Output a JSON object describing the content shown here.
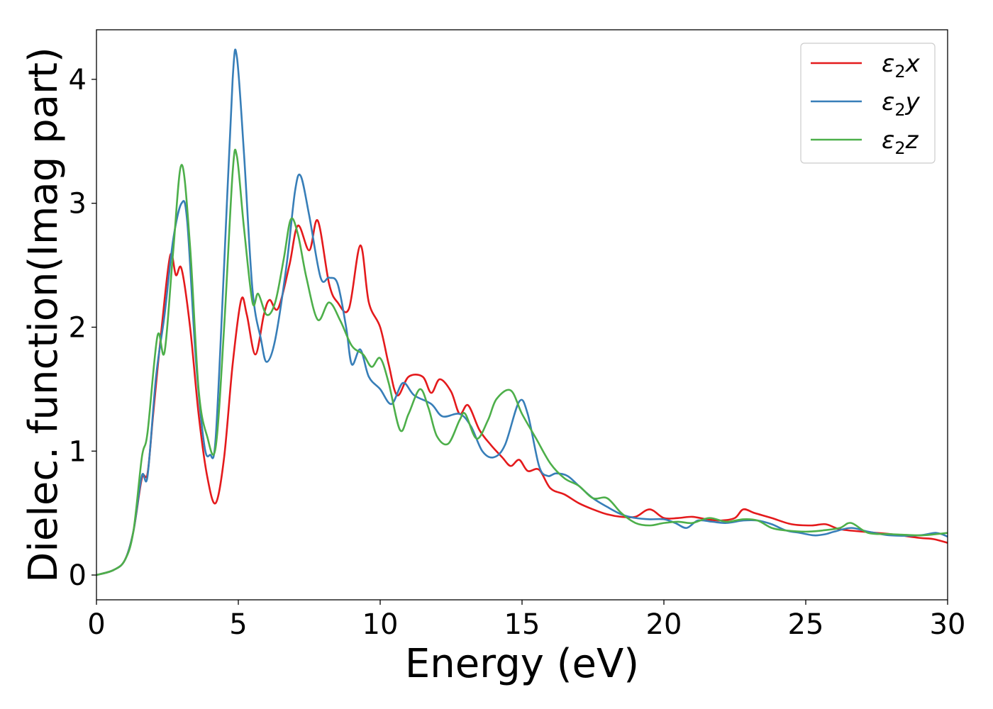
{
  "chart_data": {
    "type": "line",
    "title": "",
    "xlabel": "Energy (eV)",
    "ylabel": "Dielec. function(Imag part)",
    "xlim": [
      0,
      30
    ],
    "ylim": [
      -0.2,
      4.4
    ],
    "xticks": [
      0,
      5,
      10,
      15,
      20,
      25,
      30
    ],
    "yticks": [
      0,
      1,
      2,
      3,
      4
    ],
    "grid": false,
    "legend_position": "top-right",
    "series": [
      {
        "name": "ε₂x",
        "legend_main": "ε",
        "legend_sub": "2",
        "legend_suffix": "x",
        "color": "#e41a1c",
        "points": [
          [
            0,
            0
          ],
          [
            0.6,
            0.04
          ],
          [
            1.0,
            0.12
          ],
          [
            1.3,
            0.35
          ],
          [
            1.6,
            0.78
          ],
          [
            1.8,
            0.82
          ],
          [
            2.0,
            1.3
          ],
          [
            2.3,
            2.0
          ],
          [
            2.6,
            2.58
          ],
          [
            2.8,
            2.42
          ],
          [
            3.0,
            2.47
          ],
          [
            3.3,
            2.0
          ],
          [
            3.6,
            1.3
          ],
          [
            3.9,
            0.8
          ],
          [
            4.2,
            0.58
          ],
          [
            4.5,
            0.95
          ],
          [
            4.8,
            1.7
          ],
          [
            5.1,
            2.22
          ],
          [
            5.3,
            2.1
          ],
          [
            5.6,
            1.78
          ],
          [
            5.9,
            2.1
          ],
          [
            6.1,
            2.22
          ],
          [
            6.4,
            2.15
          ],
          [
            6.8,
            2.5
          ],
          [
            7.1,
            2.82
          ],
          [
            7.5,
            2.62
          ],
          [
            7.8,
            2.86
          ],
          [
            8.2,
            2.35
          ],
          [
            8.5,
            2.2
          ],
          [
            8.9,
            2.15
          ],
          [
            9.3,
            2.66
          ],
          [
            9.6,
            2.2
          ],
          [
            10.0,
            2.0
          ],
          [
            10.3,
            1.7
          ],
          [
            10.6,
            1.45
          ],
          [
            11.0,
            1.6
          ],
          [
            11.5,
            1.6
          ],
          [
            11.8,
            1.47
          ],
          [
            12.1,
            1.58
          ],
          [
            12.5,
            1.48
          ],
          [
            12.8,
            1.3
          ],
          [
            13.1,
            1.37
          ],
          [
            13.5,
            1.17
          ],
          [
            13.9,
            1.05
          ],
          [
            14.3,
            0.95
          ],
          [
            14.6,
            0.88
          ],
          [
            14.9,
            0.93
          ],
          [
            15.2,
            0.84
          ],
          [
            15.6,
            0.85
          ],
          [
            16.0,
            0.7
          ],
          [
            16.5,
            0.65
          ],
          [
            17.0,
            0.58
          ],
          [
            17.5,
            0.53
          ],
          [
            18.0,
            0.49
          ],
          [
            18.5,
            0.47
          ],
          [
            19.0,
            0.47
          ],
          [
            19.5,
            0.53
          ],
          [
            20.0,
            0.46
          ],
          [
            20.5,
            0.46
          ],
          [
            21.0,
            0.47
          ],
          [
            21.5,
            0.45
          ],
          [
            22.0,
            0.44
          ],
          [
            22.5,
            0.46
          ],
          [
            22.8,
            0.53
          ],
          [
            23.2,
            0.5
          ],
          [
            23.8,
            0.46
          ],
          [
            24.5,
            0.41
          ],
          [
            25.2,
            0.4
          ],
          [
            25.7,
            0.41
          ],
          [
            26.2,
            0.37
          ],
          [
            27.0,
            0.35
          ],
          [
            28.0,
            0.33
          ],
          [
            29.0,
            0.3
          ],
          [
            29.5,
            0.29
          ],
          [
            30.0,
            0.26
          ]
        ]
      },
      {
        "name": "ε₂y",
        "legend_main": "ε",
        "legend_sub": "2",
        "legend_suffix": "y",
        "color": "#377eb8",
        "points": [
          [
            0,
            0
          ],
          [
            0.6,
            0.04
          ],
          [
            1.0,
            0.12
          ],
          [
            1.3,
            0.35
          ],
          [
            1.6,
            0.8
          ],
          [
            1.8,
            0.8
          ],
          [
            2.1,
            1.6
          ],
          [
            2.4,
            2.1
          ],
          [
            2.7,
            2.7
          ],
          [
            3.0,
            3.0
          ],
          [
            3.2,
            2.85
          ],
          [
            3.5,
            1.75
          ],
          [
            3.8,
            1.05
          ],
          [
            4.0,
            0.97
          ],
          [
            4.2,
            1.1
          ],
          [
            4.5,
            2.5
          ],
          [
            4.8,
            4.0
          ],
          [
            4.95,
            4.18
          ],
          [
            5.2,
            3.4
          ],
          [
            5.5,
            2.3
          ],
          [
            5.8,
            1.9
          ],
          [
            6.0,
            1.72
          ],
          [
            6.3,
            1.9
          ],
          [
            6.7,
            2.5
          ],
          [
            7.0,
            3.1
          ],
          [
            7.2,
            3.22
          ],
          [
            7.5,
            2.9
          ],
          [
            7.9,
            2.4
          ],
          [
            8.2,
            2.4
          ],
          [
            8.5,
            2.35
          ],
          [
            8.8,
            2.0
          ],
          [
            9.0,
            1.7
          ],
          [
            9.3,
            1.82
          ],
          [
            9.6,
            1.6
          ],
          [
            10.0,
            1.5
          ],
          [
            10.4,
            1.38
          ],
          [
            10.8,
            1.55
          ],
          [
            11.2,
            1.45
          ],
          [
            11.8,
            1.38
          ],
          [
            12.2,
            1.28
          ],
          [
            12.8,
            1.3
          ],
          [
            13.2,
            1.2
          ],
          [
            13.6,
            1.0
          ],
          [
            14.0,
            0.95
          ],
          [
            14.4,
            1.05
          ],
          [
            14.9,
            1.4
          ],
          [
            15.2,
            1.3
          ],
          [
            15.6,
            0.88
          ],
          [
            15.9,
            0.8
          ],
          [
            16.2,
            0.82
          ],
          [
            16.6,
            0.8
          ],
          [
            17.0,
            0.72
          ],
          [
            17.5,
            0.62
          ],
          [
            18.0,
            0.55
          ],
          [
            18.5,
            0.49
          ],
          [
            19.0,
            0.46
          ],
          [
            19.5,
            0.45
          ],
          [
            20.0,
            0.45
          ],
          [
            20.4,
            0.42
          ],
          [
            20.8,
            0.38
          ],
          [
            21.2,
            0.44
          ],
          [
            21.7,
            0.43
          ],
          [
            22.2,
            0.42
          ],
          [
            22.8,
            0.44
          ],
          [
            23.3,
            0.44
          ],
          [
            23.8,
            0.41
          ],
          [
            24.3,
            0.36
          ],
          [
            24.8,
            0.34
          ],
          [
            25.3,
            0.32
          ],
          [
            25.7,
            0.33
          ],
          [
            26.0,
            0.35
          ],
          [
            26.6,
            0.38
          ],
          [
            27.2,
            0.35
          ],
          [
            28.0,
            0.32
          ],
          [
            29.0,
            0.32
          ],
          [
            29.6,
            0.34
          ],
          [
            30.0,
            0.31
          ]
        ]
      },
      {
        "name": "ε₂z",
        "legend_main": "ε",
        "legend_sub": "2",
        "legend_suffix": "z",
        "color": "#4daf4a",
        "points": [
          [
            0,
            0
          ],
          [
            0.6,
            0.04
          ],
          [
            1.0,
            0.12
          ],
          [
            1.3,
            0.35
          ],
          [
            1.6,
            0.95
          ],
          [
            1.8,
            1.15
          ],
          [
            2.15,
            1.93
          ],
          [
            2.4,
            1.8
          ],
          [
            2.7,
            2.6
          ],
          [
            3.0,
            3.31
          ],
          [
            3.3,
            2.65
          ],
          [
            3.6,
            1.5
          ],
          [
            3.9,
            1.12
          ],
          [
            4.2,
            1.03
          ],
          [
            4.5,
            2.0
          ],
          [
            4.8,
            3.25
          ],
          [
            4.95,
            3.38
          ],
          [
            5.2,
            2.8
          ],
          [
            5.5,
            2.2
          ],
          [
            5.7,
            2.27
          ],
          [
            6.0,
            2.1
          ],
          [
            6.3,
            2.2
          ],
          [
            6.6,
            2.55
          ],
          [
            6.85,
            2.87
          ],
          [
            7.1,
            2.75
          ],
          [
            7.4,
            2.4
          ],
          [
            7.8,
            2.06
          ],
          [
            8.2,
            2.2
          ],
          [
            8.6,
            2.05
          ],
          [
            9.0,
            1.85
          ],
          [
            9.4,
            1.78
          ],
          [
            9.7,
            1.68
          ],
          [
            10.0,
            1.75
          ],
          [
            10.3,
            1.55
          ],
          [
            10.7,
            1.17
          ],
          [
            11.0,
            1.3
          ],
          [
            11.4,
            1.5
          ],
          [
            11.7,
            1.35
          ],
          [
            12.0,
            1.12
          ],
          [
            12.4,
            1.06
          ],
          [
            12.8,
            1.25
          ],
          [
            13.0,
            1.3
          ],
          [
            13.4,
            1.1
          ],
          [
            13.8,
            1.25
          ],
          [
            14.1,
            1.42
          ],
          [
            14.6,
            1.49
          ],
          [
            15.0,
            1.3
          ],
          [
            15.5,
            1.1
          ],
          [
            16.0,
            0.9
          ],
          [
            16.5,
            0.78
          ],
          [
            17.0,
            0.72
          ],
          [
            17.5,
            0.62
          ],
          [
            18.0,
            0.62
          ],
          [
            18.5,
            0.5
          ],
          [
            19.0,
            0.42
          ],
          [
            19.5,
            0.4
          ],
          [
            20.0,
            0.42
          ],
          [
            20.5,
            0.43
          ],
          [
            21.0,
            0.42
          ],
          [
            21.6,
            0.46
          ],
          [
            22.2,
            0.43
          ],
          [
            22.8,
            0.45
          ],
          [
            23.3,
            0.44
          ],
          [
            23.8,
            0.38
          ],
          [
            24.3,
            0.36
          ],
          [
            25.0,
            0.35
          ],
          [
            25.6,
            0.36
          ],
          [
            26.2,
            0.38
          ],
          [
            26.6,
            0.42
          ],
          [
            27.2,
            0.34
          ],
          [
            28.0,
            0.33
          ],
          [
            29.0,
            0.32
          ],
          [
            29.6,
            0.33
          ],
          [
            30.0,
            0.34
          ]
        ]
      }
    ]
  }
}
